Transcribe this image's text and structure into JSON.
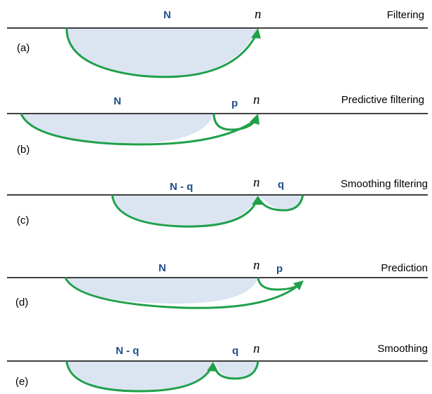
{
  "rows": [
    {
      "case": "(a)",
      "title": "Filtering",
      "main_label": "N",
      "current": "n",
      "side_label": ""
    },
    {
      "case": "(b)",
      "title": "Predictive filtering",
      "main_label": "N",
      "current": "n",
      "side_label": "p"
    },
    {
      "case": "(c)",
      "title": "Smoothing filtering",
      "main_label": "N - q",
      "current": "n",
      "side_label": "q"
    },
    {
      "case": "(d)",
      "title": "Prediction",
      "main_label": "N",
      "current": "n",
      "side_label": "p"
    },
    {
      "case": "(e)",
      "title": "Smoothing",
      "main_label": "N - q",
      "current": "n",
      "side_label": "q"
    }
  ],
  "colors": {
    "arc": "#1fa04a",
    "fill": "#dbe4f1",
    "label": "#1f4e8c"
  }
}
